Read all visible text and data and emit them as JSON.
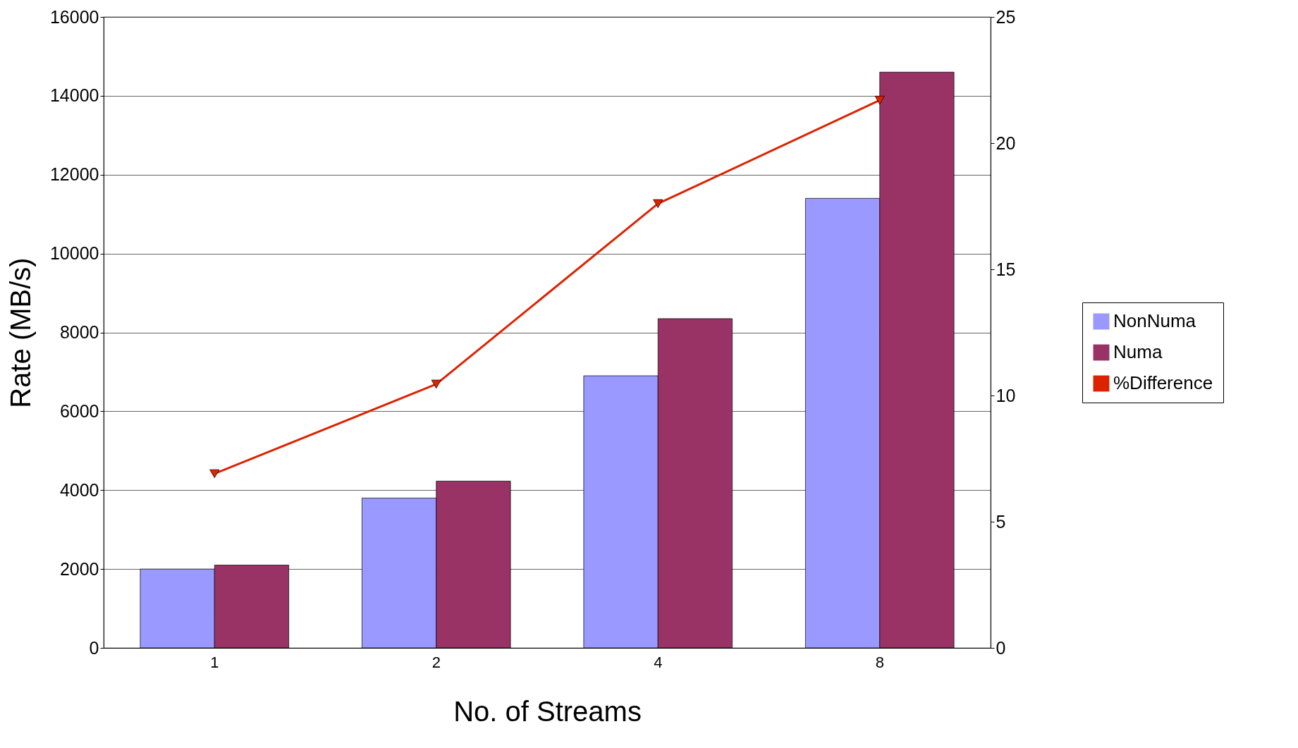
{
  "chart_data": {
    "type": "bar",
    "xlabel": "No. of Streams",
    "ylabel": "Rate (MB/s)",
    "categories": [
      "1",
      "2",
      "4",
      "8"
    ],
    "series": [
      {
        "name": "NonNuma",
        "color": "#9999ff",
        "values": [
          2000,
          3800,
          6900,
          11400
        ]
      },
      {
        "name": "Numa",
        "color": "#993366",
        "values": [
          2100,
          4230,
          8350,
          14600
        ]
      },
      {
        "name": "%Difference",
        "color": "#dd2200",
        "type": "line",
        "axis": "y2",
        "marker": "triangle",
        "values": [
          6.9,
          10.45,
          17.6,
          21.7
        ]
      }
    ],
    "ylim": [
      0,
      16000
    ],
    "yticks": [
      0,
      2000,
      4000,
      6000,
      8000,
      10000,
      12000,
      14000,
      16000
    ],
    "y2lim": [
      0,
      25
    ],
    "y2ticks": [
      0,
      5,
      10,
      15,
      20,
      25
    ],
    "grid": "y",
    "legend": "right"
  }
}
